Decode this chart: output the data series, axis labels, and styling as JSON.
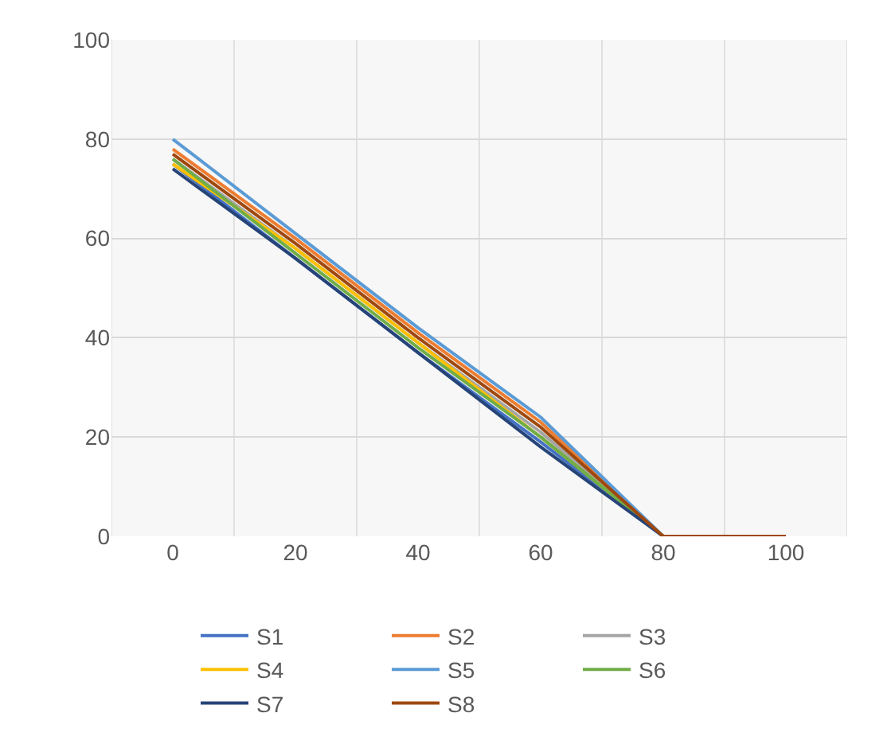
{
  "chart_data": {
    "type": "line",
    "categories": [
      "0",
      "20",
      "40",
      "60",
      "80",
      "100"
    ],
    "series": [
      {
        "name": "S1",
        "color": "#4472c4",
        "values": [
          75,
          56,
          37,
          19,
          0,
          0
        ]
      },
      {
        "name": "S2",
        "color": "#ed7d31",
        "values": [
          78,
          60,
          41,
          23,
          0,
          0
        ]
      },
      {
        "name": "S3",
        "color": "#a5a5a5",
        "values": [
          76,
          58,
          39,
          21,
          0,
          0
        ]
      },
      {
        "name": "S4",
        "color": "#ffc000",
        "values": [
          75,
          58,
          39,
          20,
          0,
          0
        ]
      },
      {
        "name": "S5",
        "color": "#5b9bd5",
        "values": [
          80,
          61,
          42,
          24,
          0,
          0
        ]
      },
      {
        "name": "S6",
        "color": "#70ad47",
        "values": [
          76,
          57,
          38,
          20,
          0,
          0
        ]
      },
      {
        "name": "S7",
        "color": "#264478",
        "values": [
          74,
          56,
          37,
          18,
          0,
          0
        ]
      },
      {
        "name": "S8",
        "color": "#9e480e",
        "values": [
          77,
          59,
          40,
          22,
          0,
          0
        ]
      }
    ],
    "ylim": [
      0,
      100
    ],
    "yticks": [
      0,
      20,
      40,
      60,
      80,
      100
    ],
    "grid": true,
    "legend": "bottom",
    "marker": "none",
    "line_style": "solid"
  }
}
